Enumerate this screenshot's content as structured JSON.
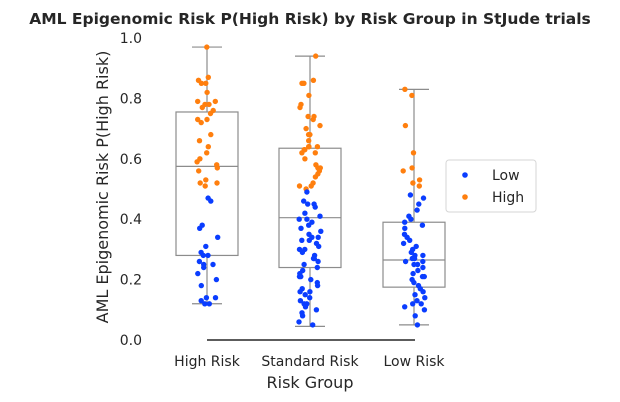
{
  "chart_data": {
    "type": "box_strip",
    "title": "AML Epigenomic Risk P(High Risk) by Risk Group in StJude trials",
    "xlabel": "Risk Group",
    "ylabel": "AML Epigenomic Risk P(High Risk)",
    "categories": [
      "High Risk",
      "Standard Risk",
      "Low Risk"
    ],
    "ylim": [
      0,
      1.0
    ],
    "yticks": [
      "0.0",
      "0.2",
      "0.4",
      "0.6",
      "0.8",
      "1.0"
    ],
    "grid": false,
    "legend_position": "right",
    "series_colors": {
      "Low": "#0a3dff",
      "High": "#ff7f0e"
    },
    "legend": [
      {
        "label": "Low",
        "color": "#0a3dff"
      },
      {
        "label": "High",
        "color": "#ff7f0e"
      }
    ],
    "box_stats": [
      {
        "category": "High Risk",
        "whisker_low": 0.12,
        "q1": 0.28,
        "median": 0.575,
        "q3": 0.755,
        "whisker_high": 0.97
      },
      {
        "category": "Standard Risk",
        "whisker_low": 0.045,
        "q1": 0.24,
        "median": 0.405,
        "q3": 0.635,
        "whisker_high": 0.94
      },
      {
        "category": "Low Risk",
        "whisker_low": 0.05,
        "q1": 0.175,
        "median": 0.265,
        "q3": 0.39,
        "whisker_high": 0.83
      }
    ],
    "points": [
      {
        "category": "High Risk",
        "series": "High",
        "values": [
          0.97,
          0.87,
          0.86,
          0.85,
          0.85,
          0.82,
          0.79,
          0.79,
          0.78,
          0.78,
          0.77,
          0.76,
          0.75,
          0.73,
          0.73,
          0.72,
          0.68,
          0.66,
          0.64,
          0.62,
          0.6,
          0.59,
          0.58,
          0.57,
          0.56,
          0.53,
          0.52,
          0.52,
          0.51
        ]
      },
      {
        "category": "High Risk",
        "series": "Low",
        "values": [
          0.47,
          0.46,
          0.38,
          0.37,
          0.34,
          0.31,
          0.29,
          0.28,
          0.28,
          0.26,
          0.25,
          0.25,
          0.24,
          0.22,
          0.2,
          0.18,
          0.14,
          0.14,
          0.13,
          0.12,
          0.12
        ]
      },
      {
        "category": "Standard Risk",
        "series": "High",
        "values": [
          0.94,
          0.86,
          0.85,
          0.85,
          0.81,
          0.78,
          0.77,
          0.74,
          0.74,
          0.73,
          0.71,
          0.7,
          0.68,
          0.68,
          0.66,
          0.64,
          0.64,
          0.64,
          0.63,
          0.63,
          0.62,
          0.62,
          0.6,
          0.58,
          0.57,
          0.57,
          0.56,
          0.55,
          0.54,
          0.52,
          0.51,
          0.51,
          0.5
        ]
      },
      {
        "category": "Standard Risk",
        "series": "Low",
        "values": [
          0.49,
          0.46,
          0.45,
          0.45,
          0.44,
          0.42,
          0.41,
          0.4,
          0.4,
          0.39,
          0.38,
          0.37,
          0.36,
          0.35,
          0.34,
          0.34,
          0.33,
          0.33,
          0.32,
          0.31,
          0.3,
          0.3,
          0.29,
          0.28,
          0.27,
          0.27,
          0.26,
          0.25,
          0.24,
          0.23,
          0.22,
          0.21,
          0.21,
          0.2,
          0.19,
          0.18,
          0.17,
          0.16,
          0.16,
          0.15,
          0.14,
          0.13,
          0.12,
          0.12,
          0.11,
          0.1,
          0.09,
          0.08,
          0.06,
          0.05
        ]
      },
      {
        "category": "Low Risk",
        "series": "High",
        "values": [
          0.83,
          0.81,
          0.71,
          0.62,
          0.57,
          0.56,
          0.53,
          0.52,
          0.51
        ]
      },
      {
        "category": "Low Risk",
        "series": "Low",
        "values": [
          0.48,
          0.47,
          0.45,
          0.43,
          0.41,
          0.4,
          0.39,
          0.38,
          0.37,
          0.35,
          0.34,
          0.33,
          0.32,
          0.31,
          0.3,
          0.29,
          0.28,
          0.28,
          0.27,
          0.27,
          0.26,
          0.26,
          0.25,
          0.25,
          0.24,
          0.23,
          0.22,
          0.21,
          0.21,
          0.2,
          0.19,
          0.18,
          0.17,
          0.16,
          0.15,
          0.14,
          0.13,
          0.12,
          0.12,
          0.11,
          0.1,
          0.08,
          0.05
        ]
      }
    ]
  }
}
